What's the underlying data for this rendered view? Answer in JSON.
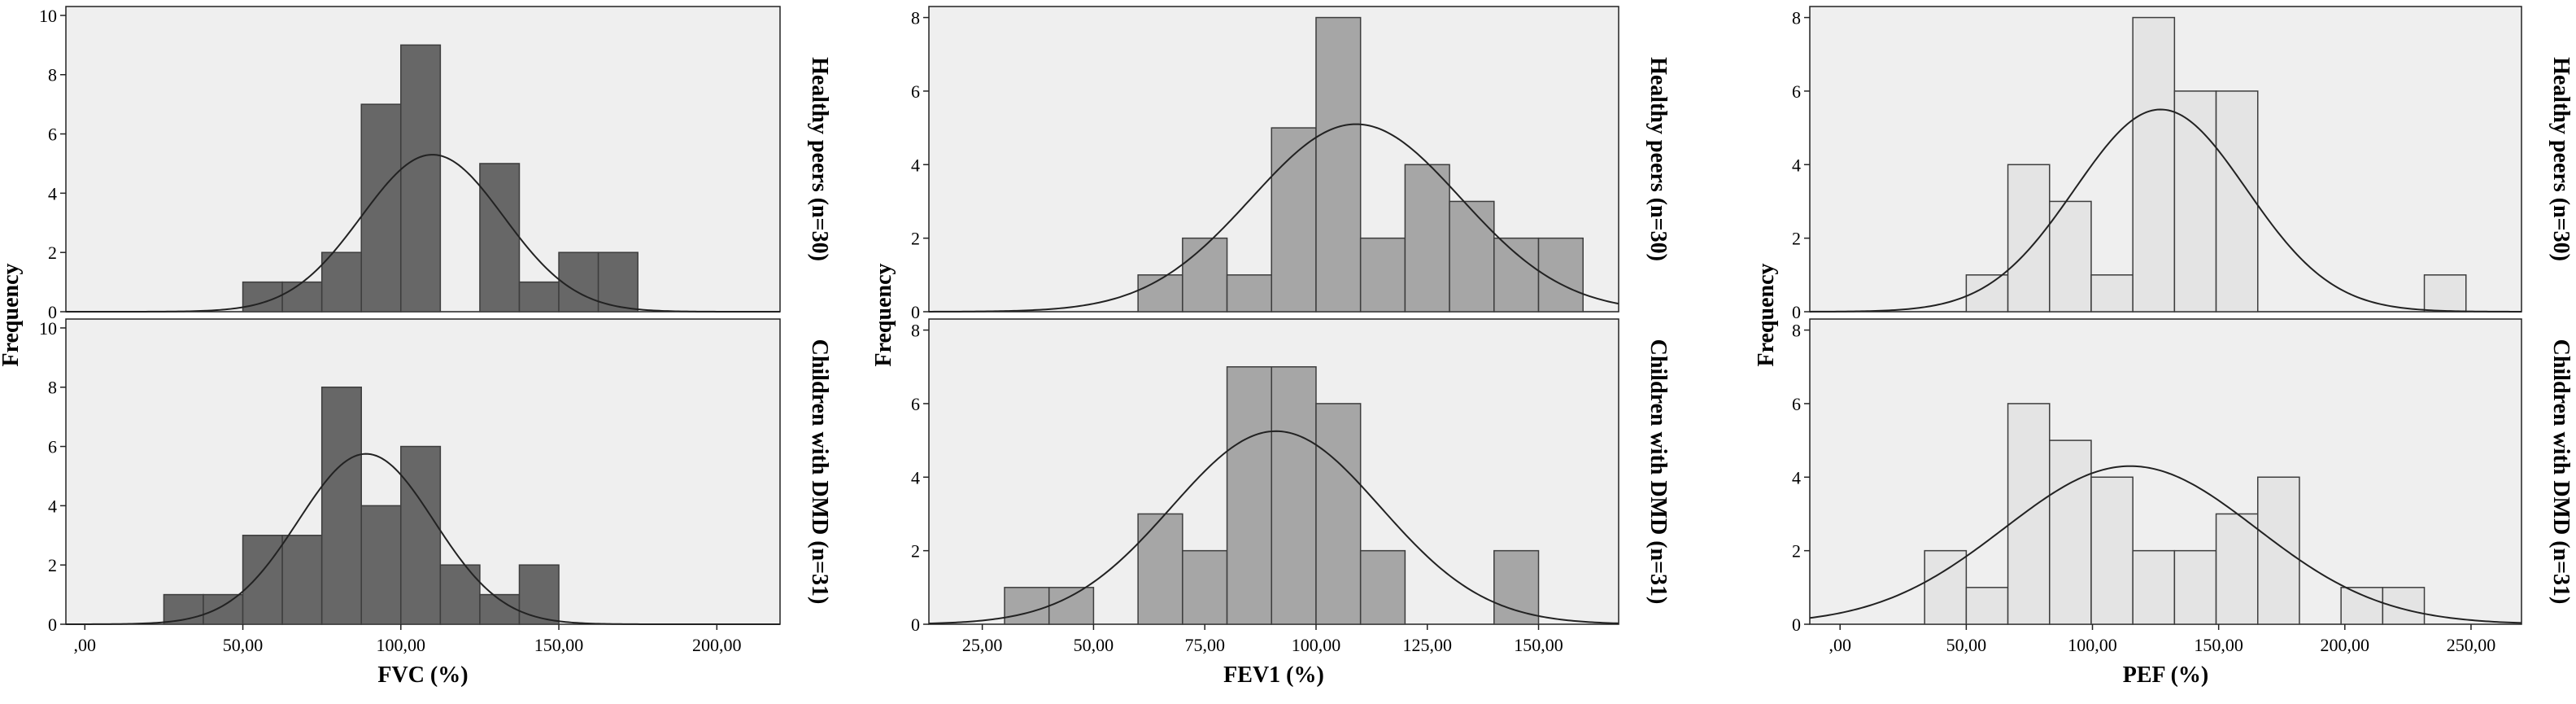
{
  "colors": {
    "panel_bg": "#efefef",
    "bar_fill": [
      "#676767",
      "#a6a6a6",
      "#e4e4e4"
    ],
    "bar_stroke": "#3d3d3d",
    "curve": "#222222"
  },
  "chart_data": [
    {
      "type": "bar",
      "subtype": "histogram-with-normal-curve",
      "xlabel": "FVC (%)",
      "ylabel": "Frequency",
      "xlim": [
        -6,
        220
      ],
      "xticks": [
        0,
        50,
        100,
        150,
        200
      ],
      "xtick_labels": [
        ",00",
        "50,00",
        "100,00",
        "150,00",
        "200,00"
      ],
      "bin_width": 12.5,
      "panels": [
        {
          "name": "Healthy peers (n=30)",
          "ylim": [
            0,
            10.3
          ],
          "yticks": [
            0,
            2,
            4,
            6,
            8,
            10
          ],
          "ytick_labels": [
            "0",
            "2",
            "4",
            "6",
            "8",
            "10"
          ],
          "bins": [
            {
              "x0": 50,
              "x1": 62.5,
              "count": 1
            },
            {
              "x0": 62.5,
              "x1": 75,
              "count": 1
            },
            {
              "x0": 75,
              "x1": 87.5,
              "count": 2
            },
            {
              "x0": 87.5,
              "x1": 100,
              "count": 7
            },
            {
              "x0": 100,
              "x1": 112.5,
              "count": 9
            },
            {
              "x0": 125,
              "x1": 137.5,
              "count": 5
            },
            {
              "x0": 137.5,
              "x1": 150,
              "count": 1
            },
            {
              "x0": 150,
              "x1": 162.5,
              "count": 2
            },
            {
              "x0": 162.5,
              "x1": 175,
              "count": 2
            }
          ],
          "normal_curve": {
            "mean": 110,
            "sd": 22.5,
            "peak": 5.3
          }
        },
        {
          "name": "Children with DMD (n=31)",
          "ylim": [
            0,
            10.3
          ],
          "yticks": [
            0,
            2,
            4,
            6,
            8,
            10
          ],
          "ytick_labels": [
            "0",
            "2",
            "4",
            "6",
            "8",
            "10"
          ],
          "bins": [
            {
              "x0": 25,
              "x1": 37.5,
              "count": 1
            },
            {
              "x0": 37.5,
              "x1": 50,
              "count": 1
            },
            {
              "x0": 50,
              "x1": 62.5,
              "count": 3
            },
            {
              "x0": 62.5,
              "x1": 75,
              "count": 3
            },
            {
              "x0": 75,
              "x1": 87.5,
              "count": 8
            },
            {
              "x0": 87.5,
              "x1": 100,
              "count": 4
            },
            {
              "x0": 100,
              "x1": 112.5,
              "count": 6
            },
            {
              "x0": 112.5,
              "x1": 125,
              "count": 2
            },
            {
              "x0": 125,
              "x1": 137.5,
              "count": 1
            },
            {
              "x0": 137.5,
              "x1": 150,
              "count": 2
            }
          ],
          "normal_curve": {
            "mean": 89,
            "sd": 21.5,
            "peak": 5.75
          }
        }
      ]
    },
    {
      "type": "bar",
      "subtype": "histogram-with-normal-curve",
      "xlabel": "FEV1 (%)",
      "ylabel": "Frequency",
      "xlim": [
        13,
        168
      ],
      "xticks": [
        25,
        50,
        75,
        100,
        125,
        150
      ],
      "xtick_labels": [
        "25,00",
        "50,00",
        "75,00",
        "100,00",
        "125,00",
        "150,00"
      ],
      "bin_width": 10,
      "panels": [
        {
          "name": "Healthy peers (n=30)",
          "ylim": [
            0,
            8.3
          ],
          "yticks": [
            0,
            2,
            4,
            6,
            8
          ],
          "ytick_labels": [
            "0",
            "2",
            "4",
            "6",
            "8"
          ],
          "bins": [
            {
              "x0": 60,
              "x1": 70,
              "count": 1
            },
            {
              "x0": 70,
              "x1": 80,
              "count": 2
            },
            {
              "x0": 80,
              "x1": 90,
              "count": 1
            },
            {
              "x0": 90,
              "x1": 100,
              "count": 5
            },
            {
              "x0": 100,
              "x1": 110,
              "count": 8
            },
            {
              "x0": 110,
              "x1": 120,
              "count": 2
            },
            {
              "x0": 120,
              "x1": 130,
              "count": 4
            },
            {
              "x0": 130,
              "x1": 140,
              "count": 3
            },
            {
              "x0": 140,
              "x1": 150,
              "count": 2
            },
            {
              "x0": 150,
              "x1": 160,
              "count": 2
            }
          ],
          "normal_curve": {
            "mean": 109,
            "sd": 23.5,
            "peak": 5.1
          }
        },
        {
          "name": "Children with DMD (n=31)",
          "ylim": [
            0,
            8.3
          ],
          "yticks": [
            0,
            2,
            4,
            6,
            8
          ],
          "ytick_labels": [
            "0",
            "2",
            "4",
            "6",
            "8"
          ],
          "bins": [
            {
              "x0": 30,
              "x1": 40,
              "count": 1
            },
            {
              "x0": 40,
              "x1": 50,
              "count": 1
            },
            {
              "x0": 60,
              "x1": 70,
              "count": 3
            },
            {
              "x0": 70,
              "x1": 80,
              "count": 2
            },
            {
              "x0": 80,
              "x1": 90,
              "count": 7
            },
            {
              "x0": 90,
              "x1": 100,
              "count": 7
            },
            {
              "x0": 100,
              "x1": 110,
              "count": 6
            },
            {
              "x0": 110,
              "x1": 120,
              "count": 2
            },
            {
              "x0": 140,
              "x1": 150,
              "count": 2
            }
          ],
          "normal_curve": {
            "mean": 91,
            "sd": 23.5,
            "peak": 5.25
          }
        }
      ]
    },
    {
      "type": "bar",
      "subtype": "histogram-with-normal-curve",
      "xlabel": "PEF (%)",
      "ylabel": "Frequency",
      "xlim": [
        -12,
        270
      ],
      "xticks": [
        0,
        50,
        100,
        150,
        200,
        250
      ],
      "xtick_labels": [
        ",00",
        "50,00",
        "100,00",
        "150,00",
        "200,00",
        "250,00"
      ],
      "bin_width": 16.5,
      "panels": [
        {
          "name": "Healthy peers (n=30)",
          "ylim": [
            0,
            8.3
          ],
          "yticks": [
            0,
            2,
            4,
            6,
            8
          ],
          "ytick_labels": [
            "0",
            "2",
            "4",
            "6",
            "8"
          ],
          "bins": [
            {
              "x0": 50,
              "x1": 66.5,
              "count": 1
            },
            {
              "x0": 66.5,
              "x1": 83,
              "count": 4
            },
            {
              "x0": 83,
              "x1": 99.5,
              "count": 3
            },
            {
              "x0": 99.5,
              "x1": 116,
              "count": 1
            },
            {
              "x0": 116,
              "x1": 132.5,
              "count": 8
            },
            {
              "x0": 132.5,
              "x1": 149,
              "count": 6
            },
            {
              "x0": 149,
              "x1": 165.5,
              "count": 6
            },
            {
              "x0": 231.5,
              "x1": 248,
              "count": 1
            }
          ],
          "normal_curve": {
            "mean": 127,
            "sd": 34,
            "peak": 5.5
          }
        },
        {
          "name": "Children with DMD (n=31)",
          "ylim": [
            0,
            8.3
          ],
          "yticks": [
            0,
            2,
            4,
            6,
            8
          ],
          "ytick_labels": [
            "0",
            "2",
            "4",
            "6",
            "8"
          ],
          "bins": [
            {
              "x0": 33.5,
              "x1": 50,
              "count": 2
            },
            {
              "x0": 50,
              "x1": 66.5,
              "count": 1
            },
            {
              "x0": 66.5,
              "x1": 83,
              "count": 6
            },
            {
              "x0": 83,
              "x1": 99.5,
              "count": 5
            },
            {
              "x0": 99.5,
              "x1": 116,
              "count": 4
            },
            {
              "x0": 116,
              "x1": 132.5,
              "count": 2
            },
            {
              "x0": 132.5,
              "x1": 149,
              "count": 2
            },
            {
              "x0": 149,
              "x1": 165.5,
              "count": 3
            },
            {
              "x0": 165.5,
              "x1": 182,
              "count": 4
            },
            {
              "x0": 198.5,
              "x1": 215,
              "count": 1
            },
            {
              "x0": 215,
              "x1": 231.5,
              "count": 1
            }
          ],
          "normal_curve": {
            "mean": 115,
            "sd": 50,
            "peak": 4.3
          }
        }
      ]
    }
  ]
}
